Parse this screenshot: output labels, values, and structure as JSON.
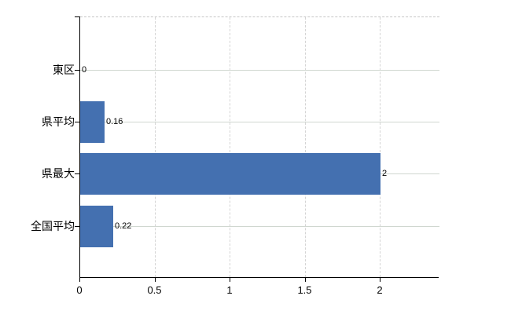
{
  "page": {
    "background": "#ffffff"
  },
  "chart_data": {
    "type": "bar",
    "orientation": "horizontal",
    "title": "",
    "xlabel": "",
    "ylabel": "",
    "categories": [
      "東区",
      "県平均",
      "県最大",
      "全国平均"
    ],
    "values": [
      0,
      0.16,
      2,
      0.22
    ],
    "value_labels": [
      "0",
      "0.16",
      "2",
      "0.22"
    ],
    "x_ticks": [
      0,
      0.5,
      1,
      1.5,
      2
    ],
    "x_tick_labels": [
      "0",
      "0.5",
      "1",
      "1.5",
      "2"
    ],
    "xlim": [
      0,
      2.4
    ],
    "grid": "on",
    "legend": "none",
    "bar_color": "#4470b0",
    "axis_color": "#000000",
    "label_color": "#000000",
    "h_gridline_color": "#d0d7d0",
    "v_gridline_color": "#d4d4d4",
    "top_border_color": "#c6c6c6"
  }
}
